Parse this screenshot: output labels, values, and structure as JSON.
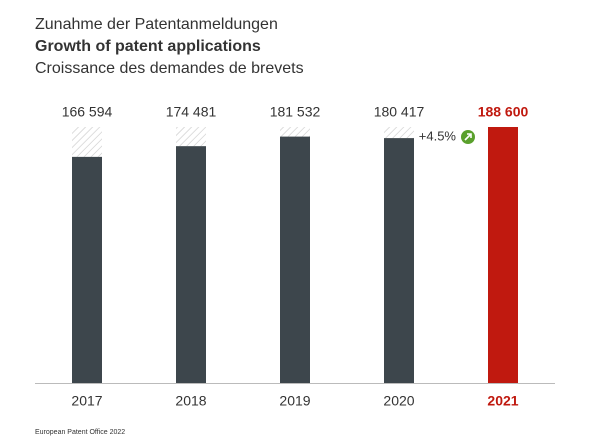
{
  "chart_data": {
    "type": "bar",
    "title": "Zunahme der Patentanmeldungen",
    "subtitle": "Growth of patent applications",
    "subtitle_fr": "Croissance des demandes de brevets",
    "categories": [
      "2017",
      "2018",
      "2019",
      "2020",
      "2021"
    ],
    "values": [
      166594,
      174481,
      181532,
      180417,
      188600
    ],
    "value_labels": [
      "166 594",
      "174 481",
      "181 532",
      "180 417",
      "188 600"
    ],
    "color": "#3d464c",
    "highlight_color": "#c0190f",
    "annotation": "+4.5%",
    "source": "European Patent Office 2022"
  }
}
